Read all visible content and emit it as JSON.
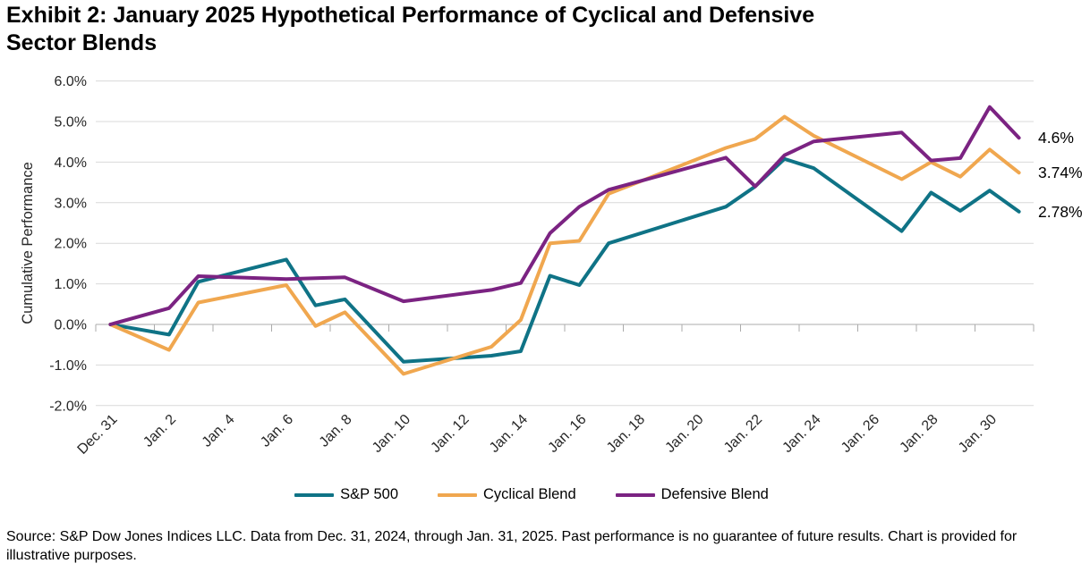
{
  "header": {
    "title_line1": "Exhibit 2: January 2025 Hypothetical Performance of Cyclical and Defensive",
    "title_line2": "Sector Blends"
  },
  "footer": {
    "source_text": "Source: S&P Dow Jones Indices LLC. Data from Dec. 31, 2024, through Jan. 31, 2025. Past performance is no guarantee of future results. Chart is provided for illustrative purposes."
  },
  "chart_data": {
    "type": "line",
    "title": "Exhibit 2: January 2025 Hypothetical Performance of Cyclical and Defensive Sector Blends",
    "ylabel": "Cumulative Performance",
    "ylim": [
      -2.0,
      6.0
    ],
    "ytick_step": 1.0,
    "ytick_labels": [
      "6.0%",
      "5.0%",
      "4.0%",
      "3.0%",
      "2.0%",
      "1.0%",
      "0.0%",
      "-1.0%",
      "-2.0%"
    ],
    "xtick_labels": [
      "Dec. 31",
      "Jan. 2",
      "Jan. 4",
      "Jan. 6",
      "Jan. 8",
      "Jan. 10",
      "Jan. 12",
      "Jan. 14",
      "Jan. 16",
      "Jan. 18",
      "Jan. 20",
      "Jan. 22",
      "Jan. 24",
      "Jan. 26",
      "Jan. 28",
      "Jan. 30"
    ],
    "x_dates": [
      "Dec. 31",
      "Jan. 2",
      "Jan. 3",
      "Jan. 6",
      "Jan. 7",
      "Jan. 8",
      "Jan. 10",
      "Jan. 13",
      "Jan. 14",
      "Jan. 15",
      "Jan. 16",
      "Jan. 17",
      "Jan. 21",
      "Jan. 22",
      "Jan. 23",
      "Jan. 24",
      "Jan. 27",
      "Jan. 28",
      "Jan. 29",
      "Jan. 30",
      "Jan. 31"
    ],
    "x_days_from_dec31": [
      0,
      2,
      3,
      6,
      7,
      8,
      10,
      13,
      14,
      15,
      16,
      17,
      21,
      22,
      23,
      24,
      27,
      28,
      29,
      30,
      31
    ],
    "x_total_days": 32,
    "grid": "horizontal",
    "legend_position": "bottom",
    "grid_color": "#D9D9D9",
    "axis_color": "#ABABAB",
    "text_color": "#262626",
    "series": [
      {
        "name": "S&P 500",
        "color": "#0F7386",
        "end_label": "2.78%",
        "values": [
          0.0,
          -0.25,
          1.05,
          1.6,
          0.47,
          0.62,
          -0.92,
          -0.77,
          -0.66,
          1.2,
          0.97,
          2.0,
          2.9,
          3.4,
          4.08,
          3.85,
          2.3,
          3.25,
          2.8,
          3.3,
          2.78
        ]
      },
      {
        "name": "Cyclical Blend",
        "color": "#F0A74F",
        "end_label": "3.74%",
        "values": [
          0.0,
          -0.63,
          0.54,
          0.97,
          -0.04,
          0.3,
          -1.22,
          -0.55,
          0.11,
          2.0,
          2.06,
          3.22,
          4.35,
          4.57,
          5.12,
          4.65,
          3.58,
          4.0,
          3.64,
          4.31,
          3.74
        ]
      },
      {
        "name": "Defensive Blend",
        "color": "#7B2382",
        "end_label": "4.6%",
        "values": [
          0.0,
          0.4,
          1.19,
          1.12,
          1.14,
          1.16,
          0.57,
          0.85,
          1.02,
          2.25,
          2.9,
          3.32,
          4.11,
          3.4,
          4.17,
          4.51,
          4.73,
          4.04,
          4.1,
          5.36,
          4.6
        ]
      }
    ]
  }
}
